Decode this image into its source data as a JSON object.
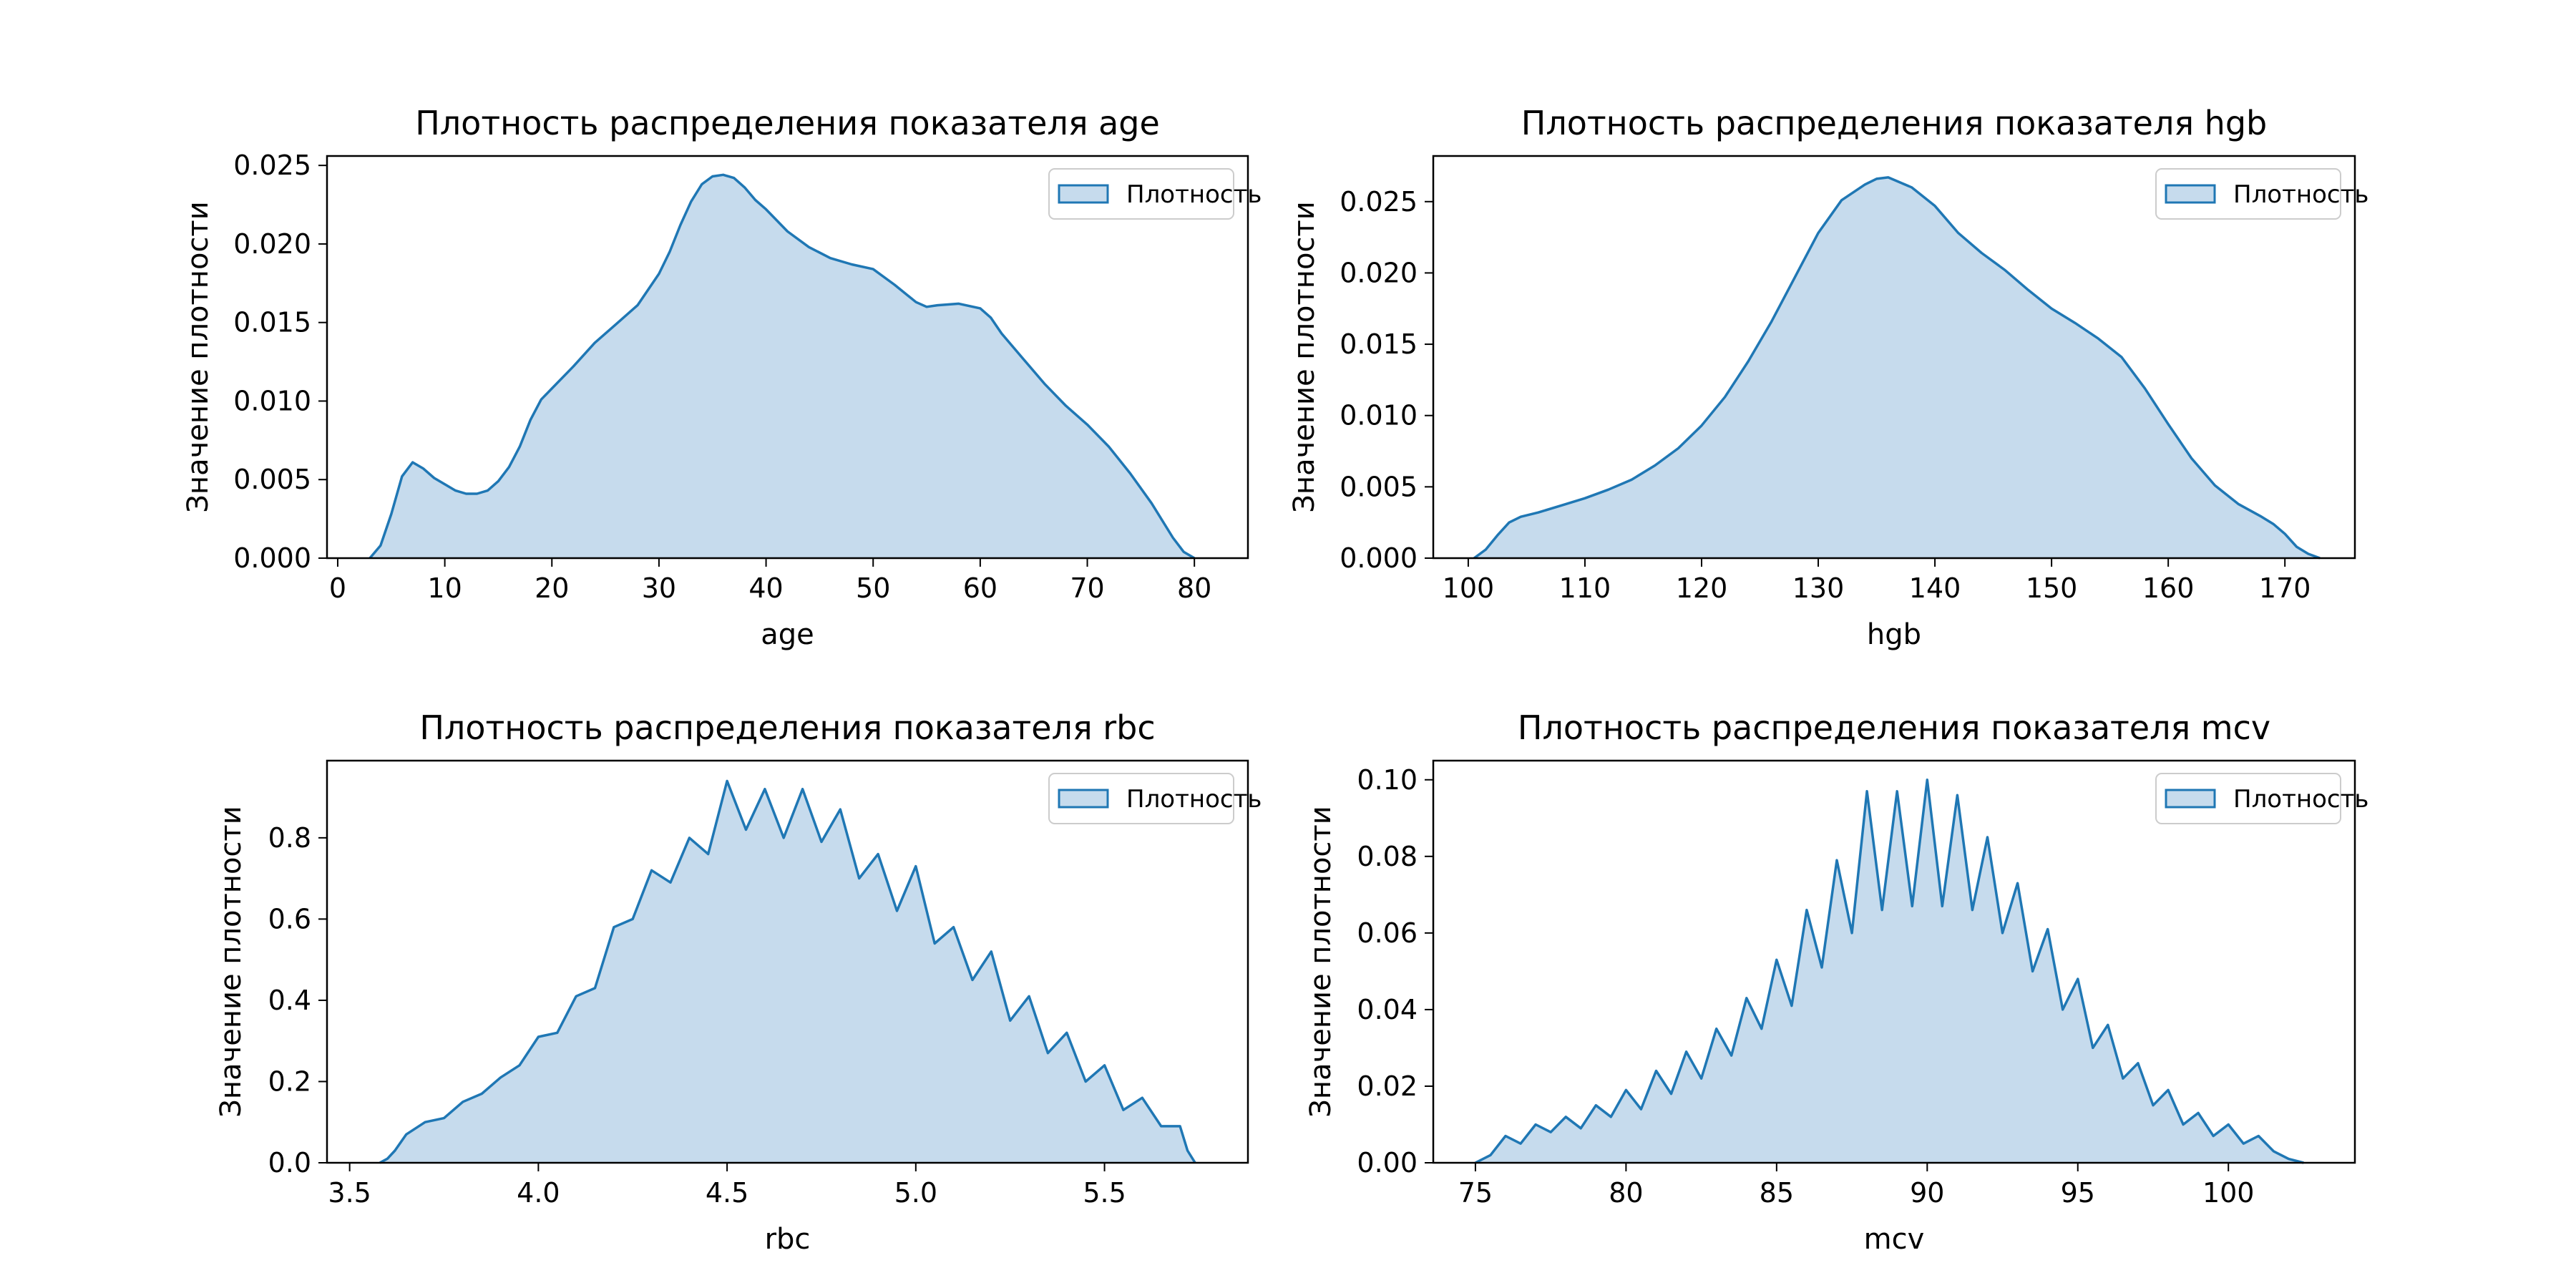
{
  "figure": {
    "colors": {
      "fill": "#c6dbed",
      "line": "#1f77b4",
      "axes": "#000000",
      "background": "#ffffff"
    }
  },
  "chart_data": [
    {
      "type": "area",
      "title": "Плотность распределения показателя age",
      "xlabel": "age",
      "ylabel": "Значение плотности",
      "legend": {
        "label": "Плотность",
        "placement": "top-right"
      },
      "grid": false,
      "xlim": [
        -1,
        85
      ],
      "ylim": [
        0,
        0.0256
      ],
      "xticks": [
        0,
        10,
        20,
        30,
        40,
        50,
        60,
        70,
        80
      ],
      "xtick_labels": [
        "0",
        "10",
        "20",
        "30",
        "40",
        "50",
        "60",
        "70",
        "80"
      ],
      "yticks": [
        0,
        0.005,
        0.01,
        0.015,
        0.02,
        0.025
      ],
      "ytick_labels": [
        "0.000",
        "0.005",
        "0.010",
        "0.015",
        "0.020",
        "0.025"
      ],
      "series": [
        {
          "x": [
            3,
            4,
            5,
            6,
            7,
            8,
            9,
            10,
            11,
            12,
            13,
            14,
            15,
            16,
            17,
            18,
            19,
            20,
            22,
            24,
            26,
            28,
            30,
            31,
            32,
            33,
            34,
            35,
            36,
            37,
            38,
            39,
            40,
            42,
            44,
            46,
            48,
            50,
            52,
            54,
            55,
            56,
            58,
            60,
            61,
            62,
            64,
            66,
            68,
            70,
            72,
            74,
            76,
            78,
            79,
            80
          ],
          "y": [
            0.0,
            0.0008,
            0.0028,
            0.0052,
            0.0061,
            0.0057,
            0.0051,
            0.0047,
            0.0043,
            0.0041,
            0.0041,
            0.0043,
            0.0049,
            0.0058,
            0.0071,
            0.0088,
            0.0101,
            0.0108,
            0.0122,
            0.0137,
            0.0149,
            0.0161,
            0.0181,
            0.0195,
            0.0212,
            0.0227,
            0.0238,
            0.0243,
            0.0244,
            0.0242,
            0.0236,
            0.0228,
            0.0222,
            0.0208,
            0.0198,
            0.0191,
            0.0187,
            0.0184,
            0.0174,
            0.0163,
            0.016,
            0.0161,
            0.0162,
            0.0159,
            0.0153,
            0.0143,
            0.0127,
            0.0111,
            0.0097,
            0.0085,
            0.0071,
            0.0054,
            0.0035,
            0.0013,
            0.0004,
            0.0
          ]
        }
      ]
    },
    {
      "type": "area",
      "title": "Плотность распределения показателя hgb",
      "xlabel": "hgb",
      "ylabel": "Значение плотности",
      "legend": {
        "label": "Плотность",
        "placement": "top-right"
      },
      "grid": false,
      "xlim": [
        97,
        176
      ],
      "ylim": [
        0,
        0.0282
      ],
      "xticks": [
        100,
        110,
        120,
        130,
        140,
        150,
        160,
        170
      ],
      "xtick_labels": [
        "100",
        "110",
        "120",
        "130",
        "140",
        "150",
        "160",
        "170"
      ],
      "yticks": [
        0,
        0.005,
        0.01,
        0.015,
        0.02,
        0.025
      ],
      "ytick_labels": [
        "0.000",
        "0.005",
        "0.010",
        "0.015",
        "0.020",
        "0.025"
      ],
      "series": [
        {
          "x": [
            100.5,
            101.5,
            102.5,
            103.5,
            104.5,
            106,
            108,
            110,
            112,
            114,
            116,
            118,
            120,
            122,
            124,
            126,
            128,
            130,
            132,
            134,
            135,
            136,
            138,
            140,
            142,
            144,
            146,
            148,
            150,
            152,
            154,
            156,
            158,
            160,
            162,
            164,
            166,
            168,
            169,
            170,
            171,
            172,
            173
          ],
          "y": [
            0.0,
            0.0006,
            0.0016,
            0.0025,
            0.0029,
            0.0032,
            0.0037,
            0.0042,
            0.0048,
            0.0055,
            0.0065,
            0.0077,
            0.0093,
            0.0113,
            0.0138,
            0.0166,
            0.0197,
            0.0228,
            0.0251,
            0.0262,
            0.0266,
            0.0267,
            0.026,
            0.0247,
            0.0228,
            0.0214,
            0.0202,
            0.0188,
            0.0175,
            0.0165,
            0.0154,
            0.0141,
            0.0119,
            0.0094,
            0.007,
            0.0051,
            0.0038,
            0.0029,
            0.0024,
            0.0017,
            0.0008,
            0.0003,
            0.0
          ]
        }
      ]
    },
    {
      "type": "area",
      "title": "Плотность распределения показателя rbc",
      "xlabel": "rbc",
      "ylabel": "Значение плотности",
      "legend": {
        "label": "Плотность",
        "placement": "top-right"
      },
      "grid": false,
      "xlim": [
        3.44,
        5.88
      ],
      "ylim": [
        0,
        0.99
      ],
      "xticks": [
        3.5,
        4.0,
        4.5,
        5.0,
        5.5
      ],
      "xtick_labels": [
        "3.5",
        "4.0",
        "4.5",
        "5.0",
        "5.5"
      ],
      "yticks": [
        0,
        0.2,
        0.4,
        0.6,
        0.8
      ],
      "ytick_labels": [
        "0.0",
        "0.2",
        "0.4",
        "0.6",
        "0.8"
      ],
      "series": [
        {
          "x": [
            3.58,
            3.6,
            3.62,
            3.65,
            3.7,
            3.75,
            3.8,
            3.85,
            3.9,
            3.95,
            4.0,
            4.05,
            4.1,
            4.15,
            4.2,
            4.25,
            4.3,
            4.35,
            4.4,
            4.45,
            4.5,
            4.55,
            4.6,
            4.65,
            4.7,
            4.75,
            4.8,
            4.85,
            4.9,
            4.95,
            5.0,
            5.05,
            5.1,
            5.15,
            5.2,
            5.25,
            5.3,
            5.35,
            5.4,
            5.45,
            5.5,
            5.55,
            5.6,
            5.65,
            5.7,
            5.72,
            5.74
          ],
          "y": [
            0.0,
            0.01,
            0.03,
            0.07,
            0.1,
            0.11,
            0.15,
            0.17,
            0.21,
            0.24,
            0.31,
            0.32,
            0.41,
            0.43,
            0.58,
            0.6,
            0.72,
            0.69,
            0.8,
            0.76,
            0.94,
            0.82,
            0.92,
            0.8,
            0.92,
            0.79,
            0.87,
            0.7,
            0.76,
            0.62,
            0.73,
            0.54,
            0.58,
            0.45,
            0.52,
            0.35,
            0.41,
            0.27,
            0.32,
            0.2,
            0.24,
            0.13,
            0.16,
            0.09,
            0.09,
            0.03,
            0.0
          ]
        }
      ]
    },
    {
      "type": "area",
      "title": "Плотность распределения показателя mcv",
      "xlabel": "mcv",
      "ylabel": "Значение плотности",
      "legend": {
        "label": "Плотность",
        "placement": "top-right"
      },
      "grid": false,
      "xlim": [
        73.6,
        104.2
      ],
      "ylim": [
        0,
        0.105
      ],
      "xticks": [
        75,
        80,
        85,
        90,
        95,
        100
      ],
      "xtick_labels": [
        "75",
        "80",
        "85",
        "90",
        "95",
        "100"
      ],
      "yticks": [
        0,
        0.02,
        0.04,
        0.06,
        0.08,
        0.1
      ],
      "ytick_labels": [
        "0.00",
        "0.02",
        "0.04",
        "0.06",
        "0.08",
        "0.10"
      ],
      "series": [
        {
          "x": [
            75,
            75.5,
            76,
            76.5,
            77,
            77.5,
            78,
            78.5,
            79,
            79.5,
            80,
            80.5,
            81,
            81.5,
            82,
            82.5,
            83,
            83.5,
            84,
            84.5,
            85,
            85.5,
            86,
            86.5,
            87,
            87.5,
            88,
            88.5,
            89,
            89.5,
            90,
            90.5,
            91,
            91.5,
            92,
            92.5,
            93,
            93.5,
            94,
            94.5,
            95,
            95.5,
            96,
            96.5,
            97,
            97.5,
            98,
            98.5,
            99,
            99.5,
            100,
            100.5,
            101,
            101.5,
            102,
            102.5
          ],
          "y": [
            0.0,
            0.002,
            0.007,
            0.005,
            0.01,
            0.008,
            0.012,
            0.009,
            0.015,
            0.012,
            0.019,
            0.014,
            0.024,
            0.018,
            0.029,
            0.022,
            0.035,
            0.028,
            0.043,
            0.035,
            0.053,
            0.041,
            0.066,
            0.051,
            0.079,
            0.06,
            0.097,
            0.066,
            0.097,
            0.067,
            0.1,
            0.067,
            0.096,
            0.066,
            0.085,
            0.06,
            0.073,
            0.05,
            0.061,
            0.04,
            0.048,
            0.03,
            0.036,
            0.022,
            0.026,
            0.015,
            0.019,
            0.01,
            0.013,
            0.007,
            0.01,
            0.005,
            0.007,
            0.003,
            0.001,
            0.0
          ]
        }
      ]
    }
  ]
}
